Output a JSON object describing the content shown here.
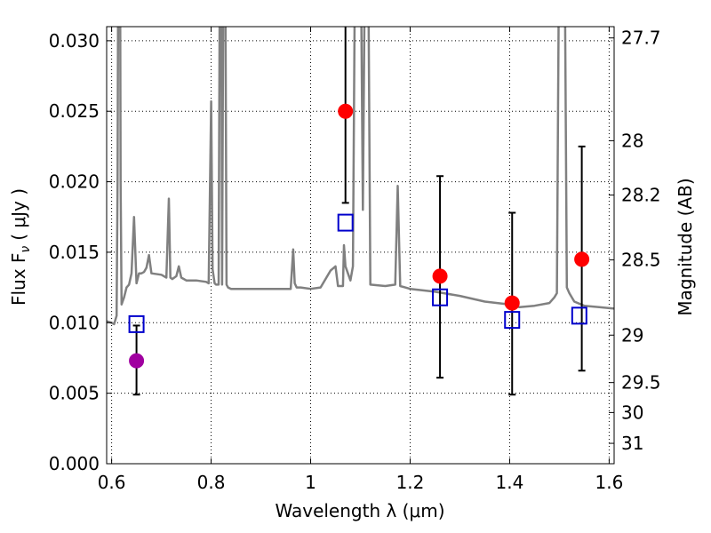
{
  "chart_data": {
    "type": "scatter",
    "xlabel": "Wavelength  λ (μm)",
    "ylabel": "Flux  F",
    "ylabel_sub": "ν",
    "ylabel_unit": "( μJy )",
    "y2label": "Magnitude (AB)",
    "xlim": [
      0.59,
      1.61
    ],
    "ylim": [
      0.0,
      0.031
    ],
    "grid": true,
    "x_ticks": [
      {
        "value": 0.6,
        "label": "0.6"
      },
      {
        "value": 0.8,
        "label": "0.8"
      },
      {
        "value": 1.0,
        "label": "1"
      },
      {
        "value": 1.2,
        "label": "1.2"
      },
      {
        "value": 1.4,
        "label": "1.4"
      },
      {
        "value": 1.6,
        "label": "1.6"
      }
    ],
    "y_ticks": [
      {
        "value": 0.0,
        "label": "0.000"
      },
      {
        "value": 0.005,
        "label": "0.005"
      },
      {
        "value": 0.01,
        "label": "0.010"
      },
      {
        "value": 0.015,
        "label": "0.015"
      },
      {
        "value": 0.02,
        "label": "0.020"
      },
      {
        "value": 0.025,
        "label": "0.025"
      },
      {
        "value": 0.03,
        "label": "0.030"
      }
    ],
    "y2_ticks": [
      {
        "mag": 27.7,
        "label": "27.7"
      },
      {
        "mag": 28,
        "label": "28"
      },
      {
        "mag": 28.2,
        "label": "28.2"
      },
      {
        "mag": 28.5,
        "label": "28.5"
      },
      {
        "mag": 29,
        "label": "29"
      },
      {
        "mag": 29.5,
        "label": "29.5"
      },
      {
        "mag": 30,
        "label": "30"
      },
      {
        "mag": 31,
        "label": "31"
      }
    ],
    "colors": {
      "model_line": "#808080",
      "model_points": "#0000cc",
      "observed": "#ff0000",
      "observed_first": "#a000a0",
      "error_bar": "#000000"
    },
    "series": [
      {
        "role": "model_spectrum",
        "x": [
          0.59,
          0.6,
          0.605,
          0.61,
          0.612,
          0.614,
          0.616,
          0.618,
          0.62,
          0.622,
          0.625,
          0.63,
          0.635,
          0.64,
          0.645,
          0.65,
          0.655,
          0.66,
          0.665,
          0.67,
          0.675,
          0.68,
          0.7,
          0.71,
          0.715,
          0.718,
          0.722,
          0.73,
          0.735,
          0.74,
          0.75,
          0.77,
          0.79,
          0.795,
          0.8,
          0.803,
          0.807,
          0.81,
          0.815,
          0.818,
          0.82,
          0.822,
          0.825,
          0.828,
          0.831,
          0.834,
          0.84,
          0.86,
          0.88,
          0.9,
          0.92,
          0.94,
          0.96,
          0.965,
          0.968,
          0.972,
          0.98,
          1.0,
          1.02,
          1.04,
          1.05,
          1.055,
          1.06,
          1.065,
          1.067,
          1.07,
          1.08,
          1.085,
          1.09,
          1.095,
          1.1,
          1.105,
          1.11,
          1.115,
          1.12,
          1.15,
          1.17,
          1.175,
          1.18,
          1.19,
          1.2,
          1.25,
          1.3,
          1.35,
          1.4,
          1.42,
          1.45,
          1.48,
          1.49,
          1.495,
          1.5,
          1.51,
          1.515,
          1.52,
          1.53,
          1.55,
          1.58,
          1.61
        ],
        "y": [
          0.0101,
          0.01,
          0.0099,
          0.0105,
          0.02,
          0.045,
          0.05,
          0.02,
          0.0113,
          0.0115,
          0.0118,
          0.0125,
          0.0127,
          0.0135,
          0.0175,
          0.0128,
          0.0135,
          0.0135,
          0.0136,
          0.0139,
          0.0148,
          0.0135,
          0.0134,
          0.0132,
          0.0188,
          0.0132,
          0.0131,
          0.0133,
          0.014,
          0.0132,
          0.013,
          0.013,
          0.0129,
          0.0128,
          0.0257,
          0.0138,
          0.0128,
          0.0127,
          0.0127,
          0.04,
          0.04,
          0.0127,
          0.04,
          0.04,
          0.0127,
          0.0125,
          0.0124,
          0.0124,
          0.0124,
          0.0124,
          0.0124,
          0.0124,
          0.0124,
          0.0152,
          0.0128,
          0.0125,
          0.0125,
          0.0124,
          0.0125,
          0.0137,
          0.014,
          0.0126,
          0.0126,
          0.0126,
          0.0155,
          0.014,
          0.013,
          0.014,
          0.04,
          0.04,
          0.04,
          0.018,
          0.04,
          0.04,
          0.0127,
          0.0126,
          0.0127,
          0.0197,
          0.0126,
          0.0125,
          0.0124,
          0.0122,
          0.0119,
          0.0115,
          0.0113,
          0.0111,
          0.0112,
          0.0114,
          0.0118,
          0.0121,
          0.04,
          0.04,
          0.0125,
          0.0121,
          0.0115,
          0.0112,
          0.0111,
          0.011
        ]
      },
      {
        "role": "model_photometry",
        "x": [
          0.65,
          1.07,
          1.26,
          1.405,
          1.54
        ],
        "y": [
          0.0099,
          0.0171,
          0.0118,
          0.0102,
          0.0105
        ]
      },
      {
        "role": "observed",
        "x": [
          0.65,
          1.07,
          1.26,
          1.405,
          1.545
        ],
        "y": [
          0.0073,
          0.025,
          0.0133,
          0.0114,
          0.0145
        ],
        "yerr_low": [
          0.0049,
          0.0185,
          0.0061,
          0.0049,
          0.0066
        ],
        "yerr_high": [
          0.0098,
          0.032,
          0.0204,
          0.0178,
          0.0225
        ]
      }
    ]
  }
}
